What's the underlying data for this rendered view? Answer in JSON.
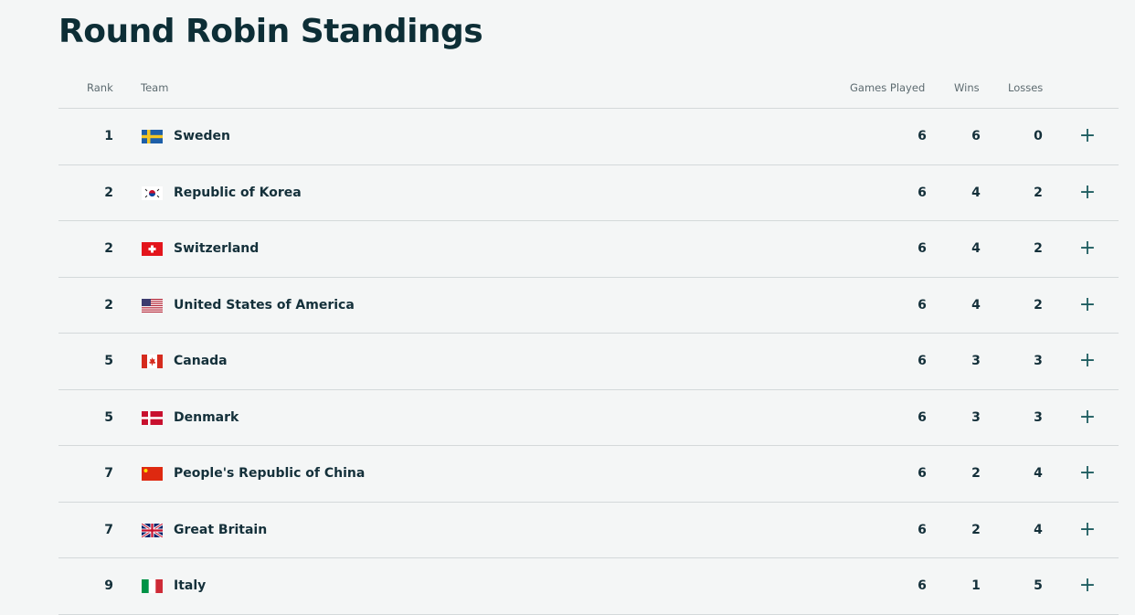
{
  "title": "Round Robin Standings",
  "columns": {
    "rank": "Rank",
    "team": "Team",
    "games_played": "Games Played",
    "wins": "Wins",
    "losses": "Losses"
  },
  "expand_icon": "plus-icon",
  "rows": [
    {
      "rank": "1",
      "team": "Sweden",
      "flag": "sweden",
      "gp": "6",
      "w": "6",
      "l": "0"
    },
    {
      "rank": "2",
      "team": "Republic of Korea",
      "flag": "korea",
      "gp": "6",
      "w": "4",
      "l": "2"
    },
    {
      "rank": "2",
      "team": "Switzerland",
      "flag": "switzerland",
      "gp": "6",
      "w": "4",
      "l": "2"
    },
    {
      "rank": "2",
      "team": "United States of America",
      "flag": "usa",
      "gp": "6",
      "w": "4",
      "l": "2"
    },
    {
      "rank": "5",
      "team": "Canada",
      "flag": "canada",
      "gp": "6",
      "w": "3",
      "l": "3"
    },
    {
      "rank": "5",
      "team": "Denmark",
      "flag": "denmark",
      "gp": "6",
      "w": "3",
      "l": "3"
    },
    {
      "rank": "7",
      "team": "People's Republic of China",
      "flag": "china",
      "gp": "6",
      "w": "2",
      "l": "4"
    },
    {
      "rank": "7",
      "team": "Great Britain",
      "flag": "great-britain",
      "gp": "6",
      "w": "2",
      "l": "4"
    },
    {
      "rank": "9",
      "team": "Italy",
      "flag": "italy",
      "gp": "6",
      "w": "1",
      "l": "5"
    }
  ]
}
